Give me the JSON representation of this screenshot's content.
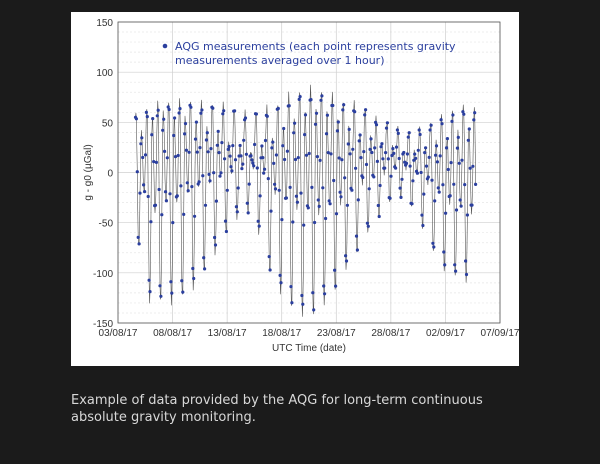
{
  "caption": {
    "line1": "Example of data provided by the AQG for long-term continuous",
    "line2": "absolute gravity monitoring."
  },
  "colors": {
    "marker": "#2b3f9e",
    "line": "#555555",
    "background": "#1b1b1b"
  },
  "chart_data": {
    "type": "line",
    "title": "",
    "xlabel": "UTC Time (date)",
    "ylabel": "g - g0 (µGal)",
    "xlim_days": [
      0,
      35
    ],
    "ylim": [
      -150,
      150
    ],
    "yticks": [
      150,
      100,
      50,
      0,
      -50,
      -100,
      -150
    ],
    "xtick_labels": [
      "03/08/17",
      "08/08/17",
      "13/08/17",
      "18/08/17",
      "23/08/17",
      "28/08/17",
      "02/09/17",
      "07/09/17"
    ],
    "xtick_days": [
      0,
      5,
      10,
      15,
      20,
      25,
      30,
      35
    ],
    "grid": true,
    "legend": {
      "label_line1": "AQG measurements (each point represents gravity",
      "label_line2": "measurements averaged over 1 hour)",
      "placement": "top-left"
    },
    "series": [
      {
        "name": "AQG measurements",
        "note": "hourly points; tidal extremes per day listed as [high1, low1, high2, low2] in µGal, days counted from 03/08/17",
        "start_day": 1.6,
        "end_day": 32.8,
        "daily_extremes": [
          [
            58,
            -75,
            40,
            -20
          ],
          [
            65,
            -128,
            55,
            -40
          ],
          [
            70,
            -130,
            60,
            -30
          ],
          [
            72,
            -130,
            55,
            -30
          ],
          [
            72,
            -125,
            55,
            -20
          ],
          [
            73,
            -115,
            50,
            -15
          ],
          [
            70,
            -100,
            45,
            -10
          ],
          [
            70,
            -80,
            40,
            -5
          ],
          [
            68,
            -60,
            30,
            0
          ],
          [
            65,
            -45,
            25,
            5
          ],
          [
            60,
            -40,
            20,
            5
          ],
          [
            62,
            -60,
            25,
            0
          ],
          [
            65,
            -100,
            35,
            -20
          ],
          [
            70,
            -120,
            45,
            -30
          ],
          [
            78,
            -135,
            55,
            -35
          ],
          [
            83,
            -143,
            60,
            -40
          ],
          [
            85,
            -143,
            65,
            -40
          ],
          [
            83,
            -132,
            60,
            -35
          ],
          [
            78,
            -118,
            55,
            -30
          ],
          [
            72,
            -97,
            45,
            -20
          ],
          [
            70,
            -80,
            40,
            -10
          ],
          [
            65,
            -60,
            35,
            -5
          ],
          [
            55,
            -45,
            30,
            0
          ],
          [
            50,
            -30,
            25,
            5
          ],
          [
            45,
            -25,
            20,
            5
          ],
          [
            40,
            -35,
            20,
            0
          ],
          [
            45,
            -55,
            25,
            -10
          ],
          [
            50,
            -80,
            30,
            -20
          ],
          [
            58,
            -97,
            35,
            -30
          ],
          [
            62,
            -105,
            40,
            -35
          ],
          [
            68,
            -108,
            45,
            -40
          ],
          [
            65,
            -110,
            45,
            -40
          ]
        ]
      }
    ]
  }
}
